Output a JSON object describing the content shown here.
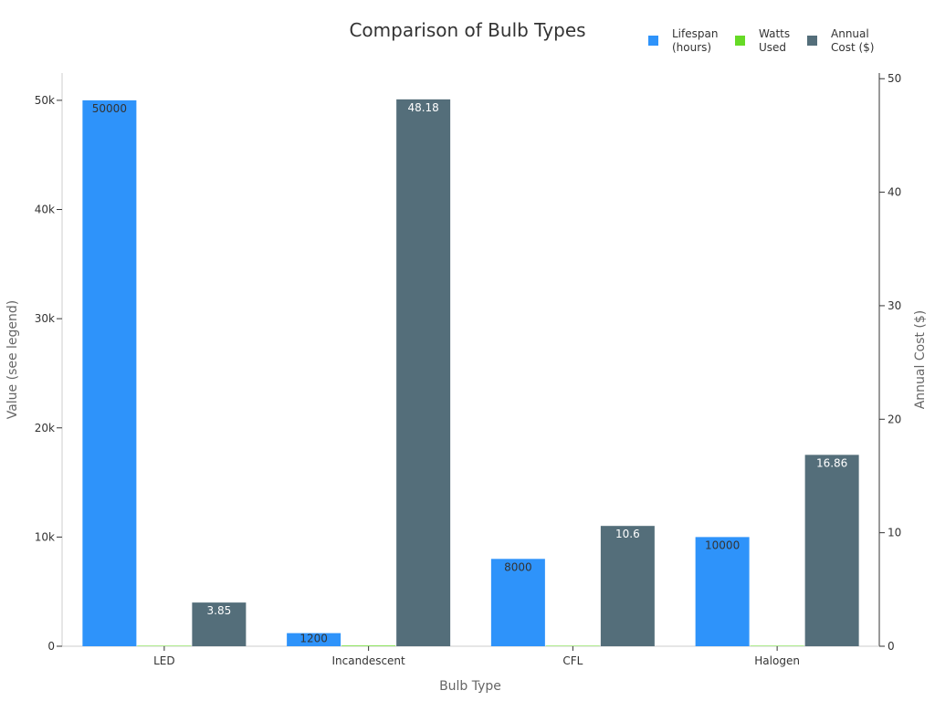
{
  "chart_data": {
    "type": "bar",
    "title": "Comparison of Bulb Types",
    "xlabel": "Bulb Type",
    "ylabel": "Value (see legend)",
    "y2label": "Annual Cost ($)",
    "categories": [
      "LED",
      "Incandescent",
      "CFL",
      "Halogen"
    ],
    "ylim": [
      0,
      52500
    ],
    "y2lim": [
      0,
      50.5
    ],
    "yticks": [
      0,
      10000,
      20000,
      30000,
      40000,
      50000
    ],
    "ytick_labels": [
      "0",
      "10k",
      "20k",
      "30k",
      "40k",
      "50k"
    ],
    "y2ticks": [
      0,
      10,
      20,
      30,
      40,
      50
    ],
    "y2tick_labels": [
      "0",
      "10",
      "20",
      "30",
      "40",
      "50"
    ],
    "grid": false,
    "legend_position": "top-right",
    "series": [
      {
        "name": "Lifespan (hours)",
        "legend_lines": [
          "Lifespan",
          "(hours)"
        ],
        "axis": "left",
        "color": "#2e93fa",
        "label_color": "#333333",
        "values": [
          50000,
          1200,
          8000,
          10000
        ],
        "labels": [
          "50000",
          "1200",
          "8000",
          "10000"
        ]
      },
      {
        "name": "Watts Used",
        "legend_lines": [
          "Watts",
          "Used"
        ],
        "axis": "left",
        "color": "#66da26",
        "label_color": "#333333",
        "values": [
          9,
          60,
          14,
          43
        ],
        "labels": [
          "",
          "",
          "",
          ""
        ]
      },
      {
        "name": "Annual Cost ($)",
        "legend_lines": [
          "Annual",
          "Cost ($)"
        ],
        "axis": "right",
        "color": "#546e7a",
        "label_color": "#ffffff",
        "values": [
          3.85,
          48.18,
          10.6,
          16.86
        ],
        "labels": [
          "3.85",
          "48.18",
          "10.6",
          "16.86"
        ]
      }
    ]
  }
}
